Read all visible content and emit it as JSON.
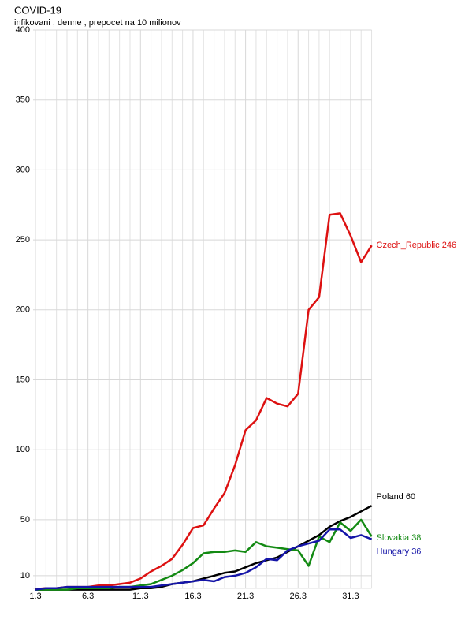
{
  "chart_data": {
    "type": "line",
    "title": "COVID-19",
    "subtitle": "infikovani , denne , prepocet na 10 milionov",
    "categories": [
      "1.3",
      null,
      null,
      null,
      null,
      "6.3",
      null,
      null,
      null,
      null,
      "11.3",
      null,
      null,
      null,
      null,
      "16.3",
      null,
      null,
      null,
      null,
      "21.3",
      null,
      null,
      null,
      null,
      "26.3",
      null,
      null,
      null,
      null,
      "31.3",
      null,
      null
    ],
    "series": [
      {
        "name": "Czech_Republic",
        "color": "#dd1111",
        "values": [
          0.5,
          1,
          1,
          2,
          2,
          2,
          3,
          3,
          4,
          5,
          8,
          13,
          17,
          22,
          32,
          44,
          46,
          58,
          69,
          89,
          114,
          121,
          137,
          133,
          131,
          140,
          200,
          209,
          268,
          269,
          253,
          234,
          246
        ]
      },
      {
        "name": "Poland",
        "color": "#000000",
        "values": [
          0,
          0,
          0,
          0,
          0,
          0,
          0,
          0,
          0,
          0,
          1,
          1,
          2,
          4,
          5,
          6,
          8,
          10,
          12,
          13,
          16,
          19,
          21,
          23,
          27,
          31,
          35,
          39,
          45,
          49,
          52,
          56,
          60
        ]
      },
      {
        "name": "Slovakia",
        "color": "#138a13",
        "values": [
          0,
          0,
          0,
          0,
          1,
          1,
          1,
          1,
          2,
          2,
          3,
          4,
          7,
          10,
          14,
          19,
          26,
          27,
          27,
          28,
          27,
          34,
          31,
          30,
          29,
          28,
          17,
          38,
          34,
          48,
          42,
          50,
          38
        ]
      },
      {
        "name": "Hungary",
        "color": "#1515a8",
        "values": [
          0,
          1,
          1,
          2,
          2,
          2,
          2,
          2,
          2,
          2,
          2,
          2,
          3,
          4,
          5,
          6,
          7,
          6,
          9,
          10,
          12,
          16,
          22,
          21,
          28,
          31,
          33,
          35,
          43,
          43,
          37,
          39,
          36
        ]
      }
    ],
    "ylim": [
      0,
      400
    ],
    "yticks": [
      10,
      50,
      100,
      150,
      200,
      250,
      300,
      350,
      400
    ],
    "grid": true
  }
}
